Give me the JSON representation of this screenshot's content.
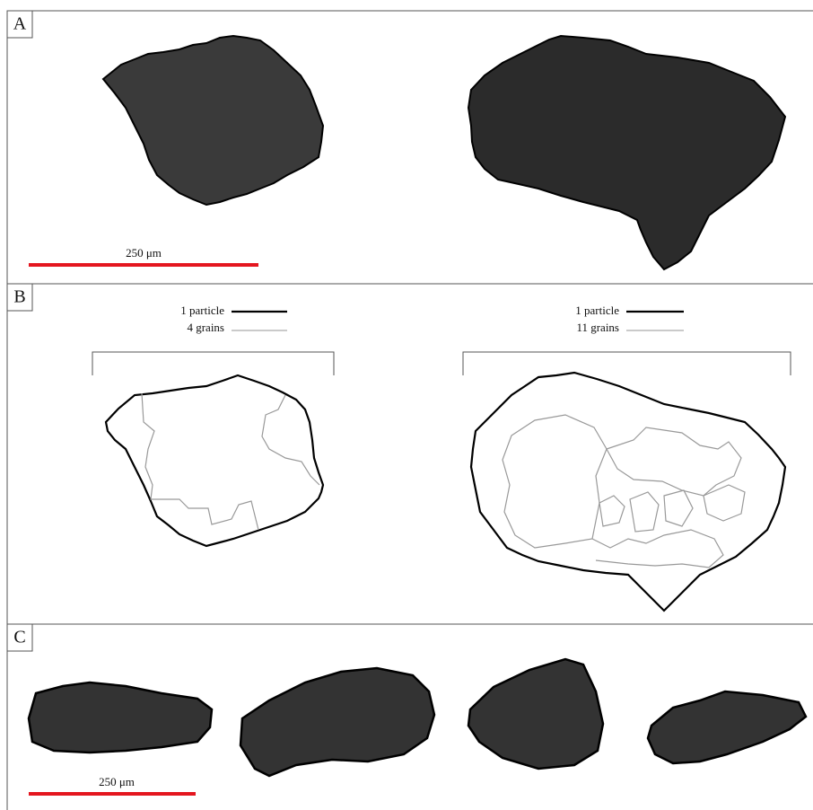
{
  "panels": [
    {
      "label": "A",
      "scale_bar": "250 μm"
    },
    {
      "label": "B",
      "legends": [
        {
          "particle": "1 particle",
          "grains": "4 grains"
        },
        {
          "particle": "1 particle",
          "grains": "11 grains"
        }
      ]
    },
    {
      "label": "C",
      "scale_bar": "250 μm"
    }
  ]
}
